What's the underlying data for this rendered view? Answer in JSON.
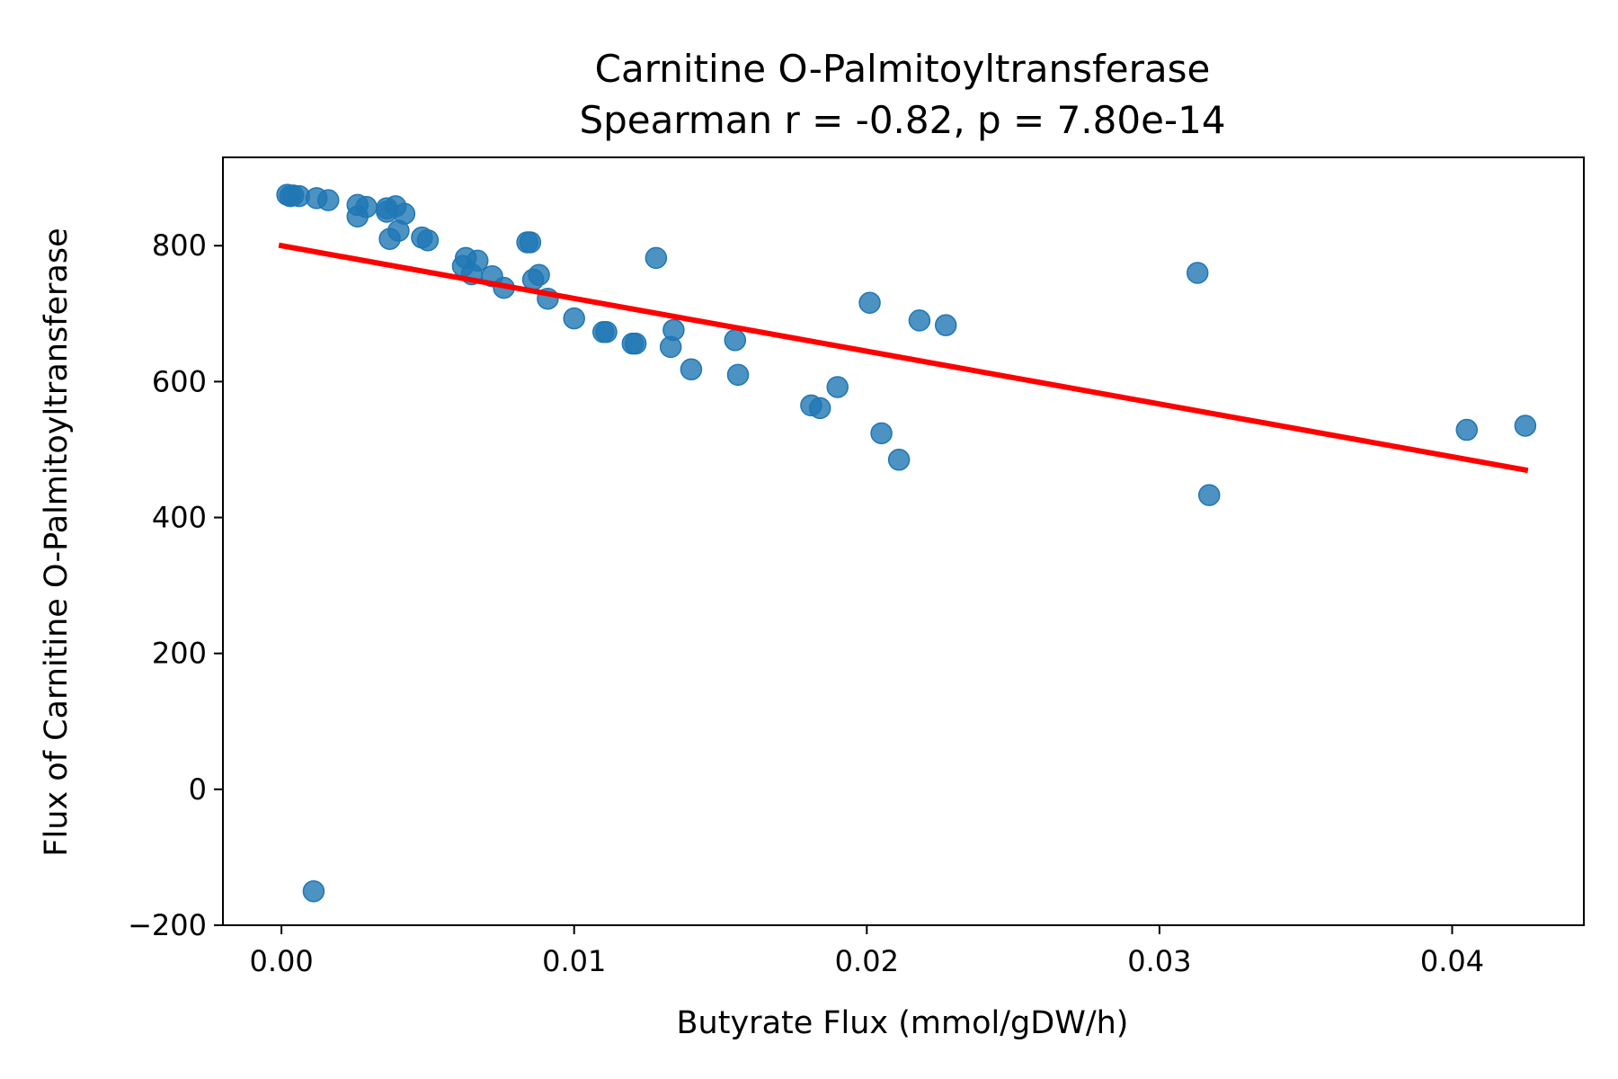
{
  "chart_data": {
    "type": "scatter",
    "title": "Carnitine O-Palmitoyltransferase",
    "subtitle": "Spearman r = -0.82, p = 7.80e-14",
    "xlabel": "Butyrate Flux (mmol/gDW/h)",
    "ylabel": "Flux of Carnitine O-Palmitoyltransferase",
    "xlim": [
      -0.002,
      0.0445
    ],
    "ylim": [
      -200,
      930
    ],
    "xticks": [
      0.0,
      0.01,
      0.02,
      0.03,
      0.04
    ],
    "xtick_labels": [
      "0.00",
      "0.01",
      "0.02",
      "0.03",
      "0.04"
    ],
    "yticks": [
      -200,
      0,
      200,
      400,
      600,
      800
    ],
    "ytick_labels": [
      "−200",
      "0",
      "200",
      "400",
      "600",
      "800"
    ],
    "grid": false,
    "colors": {
      "points": "#1f77b4",
      "fit_line": "#ff0000"
    },
    "series": [
      {
        "x": [
          0.0002,
          0.0003,
          0.0004,
          0.0006,
          0.0012,
          0.0016,
          0.0026,
          0.0029,
          0.0026,
          0.0036,
          0.0039,
          0.0042,
          0.0037,
          0.004,
          0.0036,
          0.0048,
          0.005,
          0.0063,
          0.0062,
          0.0067,
          0.0065,
          0.0072,
          0.0076,
          0.0084,
          0.0085,
          0.0086,
          0.0088,
          0.0091,
          0.01,
          0.011,
          0.0111,
          0.012,
          0.0121,
          0.0128,
          0.0133,
          0.0134,
          0.014,
          0.0155,
          0.0156,
          0.0181,
          0.0184,
          0.019,
          0.0201,
          0.0205,
          0.0211,
          0.0218,
          0.0227,
          0.0313,
          0.0317,
          0.0405,
          0.0425,
          0.0011
        ],
        "y": [
          875,
          873,
          874,
          873,
          870,
          867,
          860,
          857,
          843,
          850,
          858,
          847,
          810,
          822,
          855,
          812,
          808,
          782,
          770,
          778,
          758,
          755,
          738,
          805,
          805,
          750,
          757,
          722,
          693,
          673,
          673,
          656,
          656,
          782,
          651,
          676,
          618,
          661,
          610,
          565,
          561,
          592,
          716,
          524,
          485,
          690,
          683,
          760,
          433,
          529,
          535,
          -150
        ]
      }
    ],
    "fit_line": {
      "x": [
        0.0,
        0.0425
      ],
      "y": [
        800,
        470
      ]
    }
  }
}
